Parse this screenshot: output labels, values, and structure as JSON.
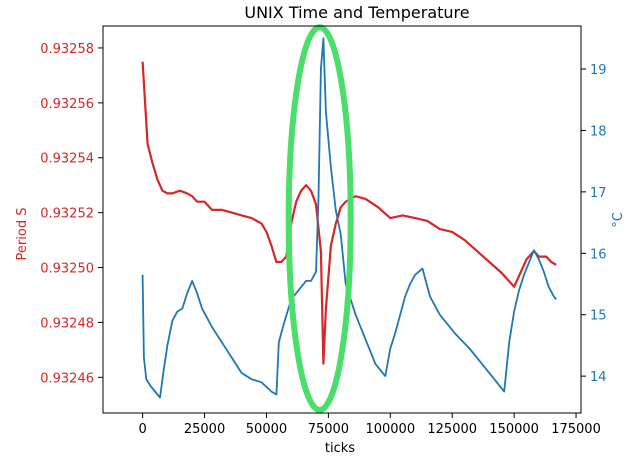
{
  "chart_data": {
    "type": "line",
    "title": "UNIX Time and Temperature",
    "xlabel": "ticks",
    "ylabel_left": "Period S",
    "ylabel_right": "°C",
    "xlim": [
      -16000,
      177000
    ],
    "ylim_left": [
      0.932447,
      0.932588
    ],
    "ylim_right": [
      13.4,
      19.7
    ],
    "x_ticks": [
      0,
      25000,
      50000,
      75000,
      100000,
      125000,
      150000,
      175000
    ],
    "x_tick_labels": [
      "0",
      "25000",
      "50000",
      "75000",
      "100000",
      "125000",
      "150000",
      "175000"
    ],
    "y_left_ticks": [
      0.93246,
      0.93248,
      0.9325,
      0.93252,
      0.93254,
      0.93256,
      0.93258
    ],
    "y_left_tick_labels": [
      "0.93246",
      "0.93248",
      "0.93250",
      "0.93252",
      "0.93254",
      "0.93256",
      "0.93258"
    ],
    "y_right_ticks": [
      14,
      15,
      16,
      17,
      18,
      19
    ],
    "y_right_tick_labels": [
      "14",
      "15",
      "16",
      "17",
      "18",
      "19"
    ],
    "grid": false,
    "colors": {
      "period": "#d62728",
      "temperature": "#1f77b4",
      "highlight": "#4ade6a",
      "axis": "#000000"
    },
    "series": [
      {
        "axis": "left",
        "color": "#d62728",
        "x": [
          0,
          1000,
          2000,
          4000,
          6000,
          8000,
          10000,
          12000,
          15000,
          18000,
          20000,
          22000,
          25000,
          28000,
          32000,
          36000,
          40000,
          44000,
          48000,
          50000,
          52000,
          54000,
          56000,
          58000,
          60000,
          62000,
          64000,
          66000,
          68000,
          70000,
          72000,
          73000,
          74000,
          76000,
          78000,
          80000,
          82000,
          84000,
          86000,
          90000,
          95000,
          100000,
          105000,
          110000,
          115000,
          120000,
          125000,
          130000,
          135000,
          140000,
          145000,
          150000,
          152000,
          155000,
          158000,
          160000,
          163000,
          165000,
          167000
        ],
        "y": [
          0.932575,
          0.93256,
          0.932545,
          0.932538,
          0.932532,
          0.932528,
          0.932527,
          0.932527,
          0.932528,
          0.932527,
          0.932526,
          0.932524,
          0.932524,
          0.932521,
          0.932521,
          0.93252,
          0.932519,
          0.932518,
          0.932516,
          0.932513,
          0.932508,
          0.932502,
          0.932502,
          0.932504,
          0.932516,
          0.932524,
          0.932528,
          0.93253,
          0.932528,
          0.932523,
          0.932506,
          0.932465,
          0.932485,
          0.932508,
          0.932516,
          0.932522,
          0.932524,
          0.932525,
          0.932526,
          0.932525,
          0.932522,
          0.932518,
          0.932519,
          0.932518,
          0.932517,
          0.932514,
          0.932513,
          0.93251,
          0.932506,
          0.932502,
          0.932498,
          0.932493,
          0.932497,
          0.932503,
          0.932506,
          0.932504,
          0.932504,
          0.932502,
          0.932501
        ]
      },
      {
        "axis": "right",
        "color": "#1f77b4",
        "x": [
          0,
          500,
          1500,
          3000,
          5000,
          7000,
          8500,
          10000,
          12000,
          14000,
          16000,
          18000,
          20000,
          22000,
          24000,
          28000,
          32000,
          36000,
          40000,
          44000,
          48000,
          52000,
          54000,
          55000,
          57000,
          60000,
          63000,
          66000,
          68000,
          70000,
          71000,
          72000,
          73000,
          74000,
          76000,
          78000,
          80000,
          82000,
          86000,
          90000,
          94000,
          98000,
          100000,
          102000,
          104000,
          106000,
          108000,
          110000,
          113000,
          116000,
          120000,
          126000,
          132000,
          138000,
          144000,
          146000,
          148000,
          150000,
          152000,
          154000,
          156000,
          158000,
          160000,
          162000,
          164000,
          166000,
          167000
        ],
        "y": [
          15.65,
          14.3,
          13.95,
          13.85,
          13.75,
          13.65,
          14.1,
          14.5,
          14.9,
          15.05,
          15.1,
          15.35,
          15.55,
          15.35,
          15.1,
          14.8,
          14.55,
          14.3,
          14.05,
          13.95,
          13.9,
          13.75,
          13.7,
          14.55,
          14.85,
          15.25,
          15.4,
          15.55,
          15.55,
          15.7,
          16.9,
          19.0,
          19.5,
          18.3,
          17.4,
          16.7,
          16.3,
          15.5,
          15.0,
          14.6,
          14.2,
          14.0,
          14.45,
          14.7,
          15.0,
          15.3,
          15.5,
          15.65,
          15.75,
          15.3,
          15.0,
          14.7,
          14.45,
          14.15,
          13.85,
          13.75,
          14.55,
          15.05,
          15.4,
          15.65,
          15.85,
          16.05,
          15.9,
          15.7,
          15.45,
          15.3,
          15.25
        ]
      }
    ],
    "annotations": [
      {
        "type": "ellipse",
        "description": "",
        "cx_data": 71500,
        "rx_data": 12500,
        "y_top_right": 19.68,
        "y_bottom_right": 13.45
      }
    ]
  }
}
